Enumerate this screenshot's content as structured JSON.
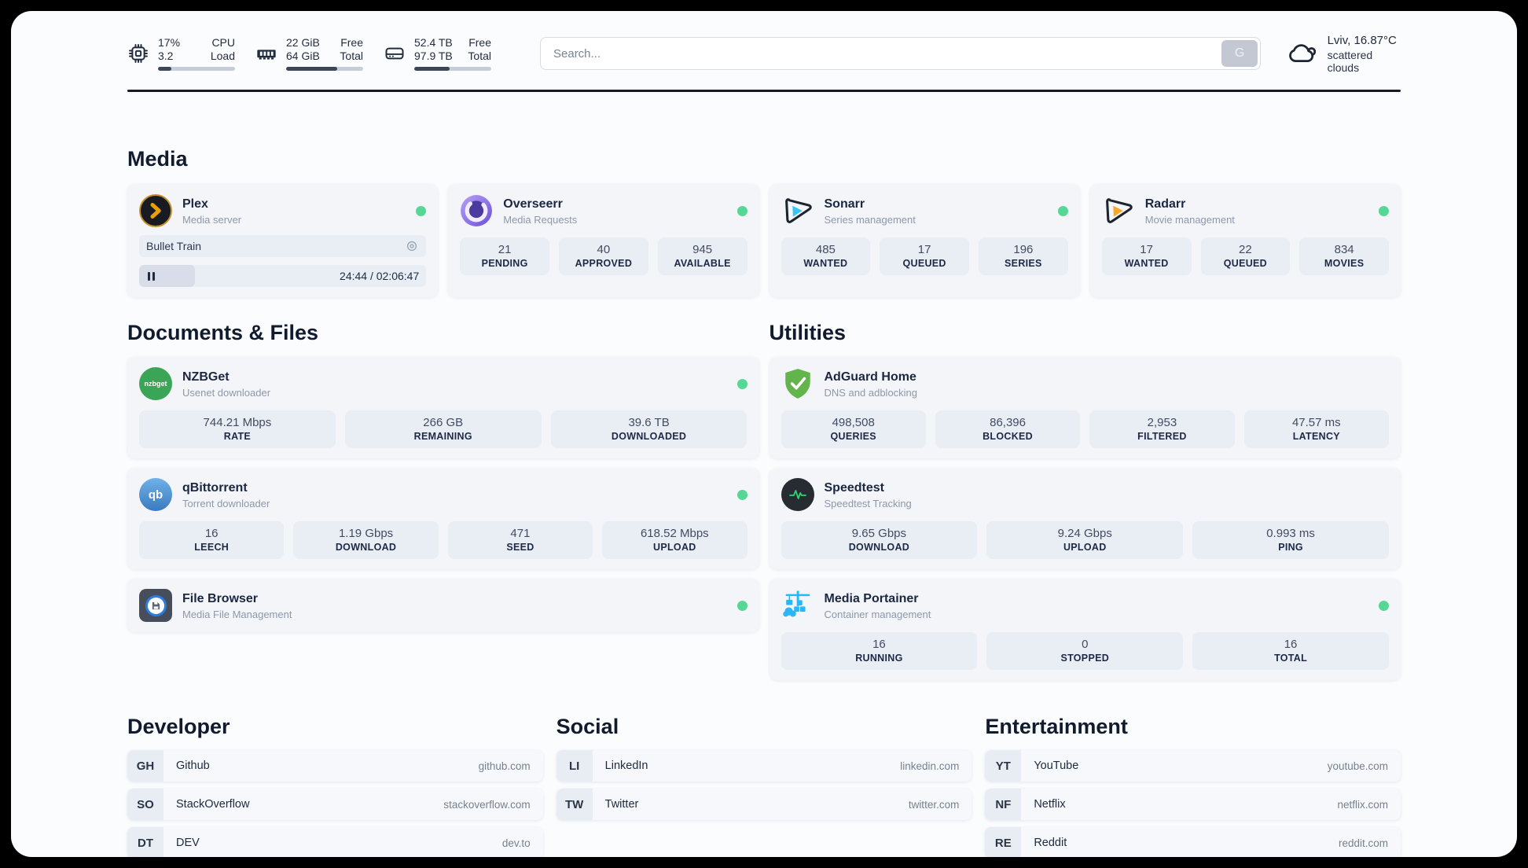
{
  "colors": {
    "online": "#57d795",
    "accent-dark": "#232c3e",
    "plex-yellow": "#e8a00a",
    "sonarr-cyan": "#35c5f4",
    "radarr-orange": "#f7a824",
    "nzbget-green": "#3aa457",
    "adguard-green": "#63b44a",
    "speedtest-green": "#2fd570",
    "portainer-blue": "#29b7f5"
  },
  "header": {
    "stats": [
      {
        "icon": "cpu-icon",
        "value_top": "17%",
        "value_bottom": "3.2",
        "label_top": "CPU",
        "label_bottom": "Load",
        "progress": 17
      },
      {
        "icon": "ram-icon",
        "value_top": "22 GiB",
        "value_bottom": "64 GiB",
        "label_top": "Free",
        "label_bottom": "Total",
        "progress": 66
      },
      {
        "icon": "disk-icon",
        "value_top": "52.4 TB",
        "value_bottom": "97.9 TB",
        "label_top": "Free",
        "label_bottom": "Total",
        "progress": 46
      }
    ],
    "search": {
      "placeholder": "Search...",
      "button_label": "G"
    },
    "weather": {
      "line1": "Lviv, 16.87°C",
      "line2": "scattered clouds"
    }
  },
  "icons": {
    "nzbget_label": "nzbget",
    "qbittorrent_label": "qb"
  },
  "sections": {
    "media": {
      "title": "Media",
      "apps": [
        {
          "name": "Plex",
          "description": "Media server",
          "online": true,
          "player": {
            "track": "Bullet Train",
            "time": "24:44 / 02:06:47",
            "progress_pct": 19.5
          }
        },
        {
          "name": "Overseerr",
          "description": "Media Requests",
          "online": true,
          "stats": [
            {
              "value": "21",
              "label": "PENDING"
            },
            {
              "value": "40",
              "label": "APPROVED"
            },
            {
              "value": "945",
              "label": "AVAILABLE"
            }
          ]
        },
        {
          "name": "Sonarr",
          "description": "Series management",
          "online": true,
          "stats": [
            {
              "value": "485",
              "label": "WANTED"
            },
            {
              "value": "17",
              "label": "QUEUED"
            },
            {
              "value": "196",
              "label": "SERIES"
            }
          ]
        },
        {
          "name": "Radarr",
          "description": "Movie management",
          "online": true,
          "stats": [
            {
              "value": "17",
              "label": "WANTED"
            },
            {
              "value": "22",
              "label": "QUEUED"
            },
            {
              "value": "834",
              "label": "MOVIES"
            }
          ]
        }
      ]
    },
    "documents": {
      "title": "Documents & Files",
      "apps": [
        {
          "name": "NZBGet",
          "description": "Usenet downloader",
          "online": true,
          "stats": [
            {
              "value": "744.21 Mbps",
              "label": "RATE"
            },
            {
              "value": "266 GB",
              "label": "REMAINING"
            },
            {
              "value": "39.6 TB",
              "label": "DOWNLOADED"
            }
          ]
        },
        {
          "name": "qBittorrent",
          "description": "Torrent downloader",
          "online": true,
          "stats": [
            {
              "value": "16",
              "label": "LEECH"
            },
            {
              "value": "1.19 Gbps",
              "label": "DOWNLOAD"
            },
            {
              "value": "471",
              "label": "SEED"
            },
            {
              "value": "618.52 Mbps",
              "label": "UPLOAD"
            }
          ]
        },
        {
          "name": "File Browser",
          "description": "Media File Management",
          "online": true,
          "stats": []
        }
      ]
    },
    "utilities": {
      "title": "Utilities",
      "apps": [
        {
          "name": "AdGuard Home",
          "description": "DNS and adblocking",
          "online": false,
          "stats": [
            {
              "value": "498,508",
              "label": "QUERIES"
            },
            {
              "value": "86,396",
              "label": "BLOCKED"
            },
            {
              "value": "2,953",
              "label": "FILTERED"
            },
            {
              "value": "47.57 ms",
              "label": "LATENCY"
            }
          ]
        },
        {
          "name": "Speedtest",
          "description": "Speedtest Tracking",
          "online": false,
          "stats": [
            {
              "value": "9.65 Gbps",
              "label": "DOWNLOAD"
            },
            {
              "value": "9.24 Gbps",
              "label": "UPLOAD"
            },
            {
              "value": "0.993 ms",
              "label": "PING"
            }
          ]
        },
        {
          "name": "Media Portainer",
          "description": "Container management",
          "online": true,
          "stats": [
            {
              "value": "16",
              "label": "RUNNING"
            },
            {
              "value": "0",
              "label": "STOPPED"
            },
            {
              "value": "16",
              "label": "TOTAL"
            }
          ]
        }
      ]
    }
  },
  "bookmarks": [
    {
      "title": "Developer",
      "links": [
        {
          "abbr": "GH",
          "name": "Github",
          "url": "github.com"
        },
        {
          "abbr": "SO",
          "name": "StackOverflow",
          "url": "stackoverflow.com"
        },
        {
          "abbr": "DT",
          "name": "DEV",
          "url": "dev.to"
        }
      ]
    },
    {
      "title": "Social",
      "links": [
        {
          "abbr": "LI",
          "name": "LinkedIn",
          "url": "linkedin.com"
        },
        {
          "abbr": "TW",
          "name": "Twitter",
          "url": "twitter.com"
        }
      ]
    },
    {
      "title": "Entertainment",
      "links": [
        {
          "abbr": "YT",
          "name": "YouTube",
          "url": "youtube.com"
        },
        {
          "abbr": "NF",
          "name": "Netflix",
          "url": "netflix.com"
        },
        {
          "abbr": "RE",
          "name": "Reddit",
          "url": "reddit.com"
        }
      ]
    }
  ]
}
